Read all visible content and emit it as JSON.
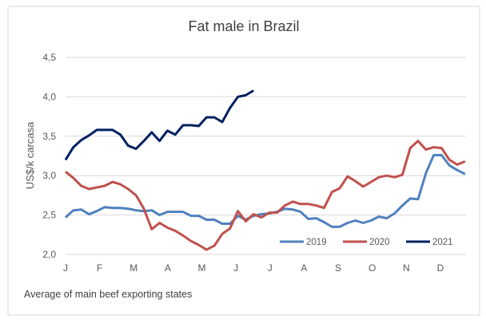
{
  "chart_data": {
    "type": "line",
    "title": "Fat male in Brazil",
    "ylabel": "US$/k carcasa",
    "xlabel": "",
    "note": "Average of main beef exporting states",
    "x_unit": "week",
    "month_labels": [
      "J",
      "F",
      "M",
      "A",
      "M",
      "J",
      "J",
      "A",
      "S",
      "O",
      "N",
      "D"
    ],
    "ylim": [
      2.0,
      4.5
    ],
    "yticks": [
      "2,0",
      "2,5",
      "3,0",
      "3,5",
      "4,0",
      "4,5"
    ],
    "ytick_values": [
      2.0,
      2.5,
      3.0,
      3.5,
      4.0,
      4.5
    ],
    "grid": true,
    "legend_position": "bottom-right inside",
    "series": [
      {
        "name": "2019",
        "color": "#4f81bd",
        "values": [
          2.47,
          2.56,
          2.57,
          2.51,
          2.55,
          2.6,
          2.59,
          2.59,
          2.58,
          2.56,
          2.55,
          2.56,
          2.5,
          2.54,
          2.54,
          2.54,
          2.49,
          2.49,
          2.44,
          2.44,
          2.39,
          2.39,
          2.49,
          2.44,
          2.49,
          2.51,
          2.52,
          2.54,
          2.58,
          2.57,
          2.54,
          2.45,
          2.46,
          2.41,
          2.35,
          2.35,
          2.4,
          2.43,
          2.4,
          2.43,
          2.48,
          2.46,
          2.52,
          2.62,
          2.71,
          2.7,
          3.03,
          3.26,
          3.26,
          3.13,
          3.07,
          3.02
        ]
      },
      {
        "name": "2020",
        "color": "#c0504d",
        "values": [
          3.05,
          2.97,
          2.87,
          2.83,
          2.85,
          2.87,
          2.92,
          2.89,
          2.83,
          2.75,
          2.58,
          2.32,
          2.4,
          2.34,
          2.3,
          2.24,
          2.17,
          2.12,
          2.06,
          2.11,
          2.26,
          2.33,
          2.55,
          2.42,
          2.51,
          2.47,
          2.53,
          2.53,
          2.62,
          2.67,
          2.64,
          2.64,
          2.62,
          2.59,
          2.79,
          2.84,
          2.99,
          2.93,
          2.86,
          2.92,
          2.98,
          3.0,
          2.98,
          3.01,
          3.35,
          3.44,
          3.33,
          3.36,
          3.35,
          3.2,
          3.14,
          3.18
        ]
      },
      {
        "name": "2021",
        "color": "#002060",
        "values": [
          3.2,
          3.36,
          3.45,
          3.51,
          3.58,
          3.58,
          3.58,
          3.52,
          3.38,
          3.34,
          3.44,
          3.55,
          3.44,
          3.57,
          3.52,
          3.64,
          3.64,
          3.63,
          3.74,
          3.74,
          3.68,
          3.86,
          4.0,
          4.02,
          4.08
        ]
      }
    ]
  }
}
